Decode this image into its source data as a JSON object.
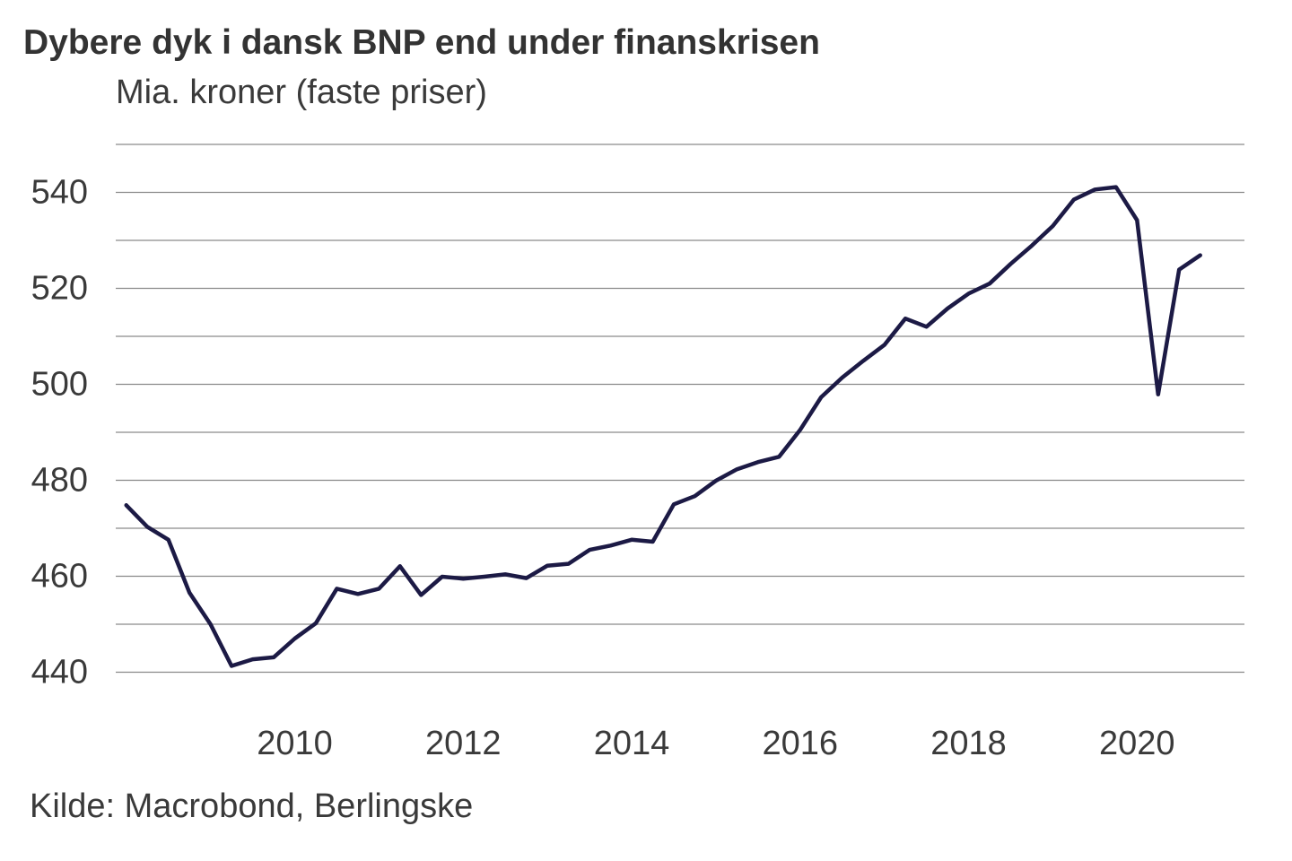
{
  "chart_data": {
    "type": "line",
    "title": "Dybere dyk i dansk BNP end under finanskrisen",
    "subtitle": "Mia. kroner (faste priser)",
    "source": "Kilde: Macrobond, Berlingske",
    "xlabel": "",
    "ylabel": "Mia. kroner (faste priser)",
    "ylim": [
      430,
      550
    ],
    "xlim": [
      2008.0,
      2021.4
    ],
    "grid": true,
    "y_ticks": [
      440,
      460,
      480,
      500,
      520,
      540
    ],
    "y_tick_labels": [
      "440",
      "460",
      "480",
      "500",
      "520",
      "540"
    ],
    "x_ticks": [
      2010,
      2012,
      2014,
      2016,
      2018,
      2020
    ],
    "x_tick_labels": [
      "2010",
      "2012",
      "2014",
      "2016",
      "2018",
      "2020"
    ],
    "series": [
      {
        "name": "BNP",
        "color": "#1c1a45",
        "x": [
          2008.125,
          2008.375,
          2008.625,
          2008.875,
          2009.125,
          2009.375,
          2009.625,
          2009.875,
          2010.125,
          2010.375,
          2010.625,
          2010.875,
          2011.125,
          2011.375,
          2011.625,
          2011.875,
          2012.125,
          2012.375,
          2012.625,
          2012.875,
          2013.125,
          2013.375,
          2013.625,
          2013.875,
          2014.125,
          2014.375,
          2014.625,
          2014.875,
          2015.125,
          2015.375,
          2015.625,
          2015.875,
          2016.125,
          2016.375,
          2016.625,
          2016.875,
          2017.125,
          2017.375,
          2017.625,
          2017.875,
          2018.125,
          2018.375,
          2018.625,
          2018.875,
          2019.125,
          2019.375,
          2019.625,
          2019.875,
          2020.125,
          2020.375,
          2020.625,
          2020.875
        ],
        "values": [
          474.8,
          470.3,
          467.6,
          456.6,
          450.0,
          441.3,
          442.7,
          443.1,
          447.0,
          450.2,
          457.4,
          456.3,
          457.4,
          462.1,
          456.1,
          459.9,
          459.5,
          459.9,
          460.4,
          459.6,
          462.2,
          462.6,
          465.5,
          466.4,
          467.6,
          467.2,
          475.0,
          476.7,
          479.9,
          482.3,
          483.8,
          484.9,
          490.5,
          497.3,
          501.4,
          504.9,
          508.2,
          513.7,
          512.0,
          515.8,
          518.9,
          521.0,
          525.1,
          528.9,
          533.0,
          538.5,
          540.6,
          541.1,
          534.2,
          497.9,
          523.9,
          526.9
        ]
      }
    ]
  }
}
